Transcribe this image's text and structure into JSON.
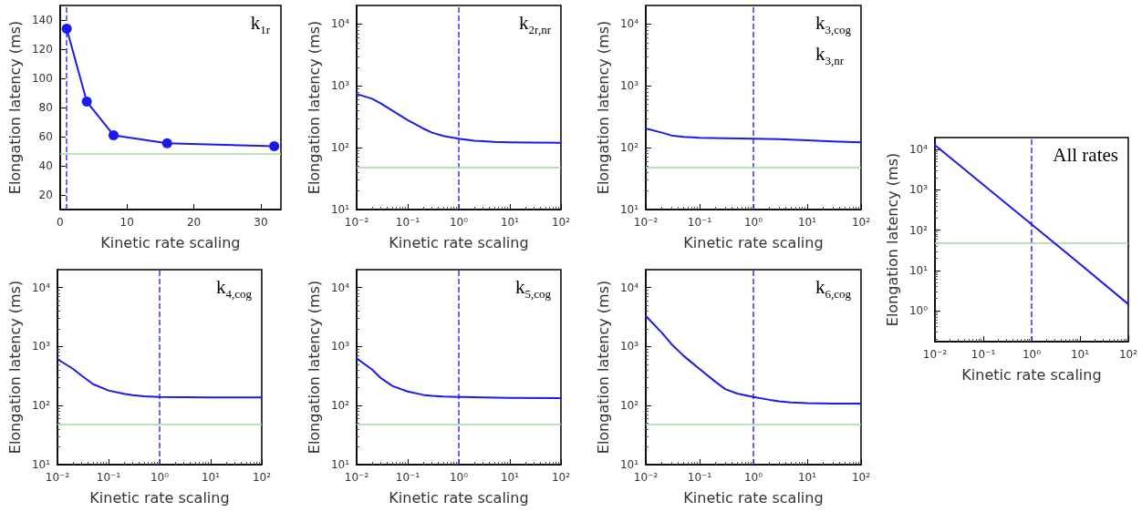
{
  "chart_data": [
    {
      "type": "line",
      "xlabel": "Kinetic rate scaling",
      "ylabel": "Elongation latency (ms)",
      "annotations": [
        "k$_{1r}$"
      ],
      "xlim": [
        0,
        33
      ],
      "ylim": [
        10,
        150
      ],
      "xticks": [
        0,
        10,
        20,
        30
      ],
      "yticks": [
        20,
        40,
        60,
        80,
        100,
        120,
        140
      ],
      "marker": "circle",
      "series": [
        {
          "color": "#1a1aee",
          "x": [
            1,
            4,
            8,
            16,
            32
          ],
          "values": [
            134,
            84,
            61,
            55.5,
            53.5
          ]
        }
      ],
      "ref_lines": [
        {
          "axis": "x",
          "value": 1,
          "color": "#3333ee",
          "line_style": "dashed"
        },
        {
          "axis": "y",
          "value": 48,
          "color": "#a3d9a3",
          "line_style": "solid"
        }
      ]
    },
    {
      "type": "line",
      "xlabel": "Kinetic rate scaling",
      "ylabel": "Elongation latency (ms)",
      "annotations": [
        "k$_{2r,nr}$"
      ],
      "log": "xy",
      "xlim": [
        0.01,
        100
      ],
      "ylim": [
        10,
        20000
      ],
      "xticks": [
        {
          "value": 0.01,
          "label": "10⁻²"
        },
        {
          "value": 0.1,
          "label": "10⁻¹"
        },
        {
          "value": 1,
          "label": "10⁰"
        },
        {
          "value": 10,
          "label": "10¹"
        },
        {
          "value": 100,
          "label": "10²"
        }
      ],
      "yticks": [
        {
          "value": 10,
          "label": "10¹"
        },
        {
          "value": 100,
          "label": "10²"
        },
        {
          "value": 1000,
          "label": "10³"
        },
        {
          "value": 10000,
          "label": "10⁴"
        }
      ],
      "series": [
        {
          "color": "#1a1aee",
          "x": [
            0.01,
            0.02,
            0.03,
            0.05,
            0.1,
            0.2,
            0.3,
            0.5,
            1,
            2,
            3,
            5,
            10,
            30,
            100
          ],
          "values": [
            740,
            620,
            520,
            400,
            280,
            205,
            175,
            155,
            140,
            130,
            127,
            124,
            122,
            121,
            120
          ]
        }
      ],
      "ref_lines": [
        {
          "axis": "x",
          "value": 1,
          "color": "#3333ee",
          "line_style": "dashed"
        },
        {
          "axis": "y",
          "value": 48,
          "color": "#a3d9a3",
          "line_style": "solid"
        }
      ]
    },
    {
      "type": "line",
      "xlabel": "Kinetic rate scaling",
      "ylabel": "Elongation latency (ms)",
      "annotations": [
        "k$_{3,cog}$",
        "k$_{3,nr}$"
      ],
      "log": "xy",
      "xlim": [
        0.01,
        100
      ],
      "ylim": [
        10,
        20000
      ],
      "xticks": [
        {
          "value": 0.01,
          "label": "10⁻²"
        },
        {
          "value": 0.1,
          "label": "10⁻¹"
        },
        {
          "value": 1,
          "label": "10⁰"
        },
        {
          "value": 10,
          "label": "10¹"
        },
        {
          "value": 100,
          "label": "10²"
        }
      ],
      "yticks": [
        {
          "value": 10,
          "label": "10¹"
        },
        {
          "value": 100,
          "label": "10²"
        },
        {
          "value": 1000,
          "label": "10³"
        },
        {
          "value": 10000,
          "label": "10⁴"
        }
      ],
      "series": [
        {
          "color": "#1a1aee",
          "x": [
            0.01,
            0.02,
            0.03,
            0.05,
            0.1,
            0.3,
            1,
            3,
            10,
            30,
            100
          ],
          "values": [
            205,
            175,
            158,
            150,
            145,
            142,
            140,
            137,
            132,
            126,
            122
          ]
        }
      ],
      "ref_lines": [
        {
          "axis": "x",
          "value": 1,
          "color": "#3333ee",
          "line_style": "dashed"
        },
        {
          "axis": "y",
          "value": 48,
          "color": "#a3d9a3",
          "line_style": "solid"
        }
      ]
    },
    {
      "type": "line",
      "xlabel": "Kinetic rate scaling",
      "ylabel": "Elongation latency (ms)",
      "annotations": [
        "k$_{4,cog}$"
      ],
      "log": "xy",
      "xlim": [
        0.01,
        100
      ],
      "ylim": [
        10,
        20000
      ],
      "xticks": [
        {
          "value": 0.01,
          "label": "10⁻²"
        },
        {
          "value": 0.1,
          "label": "10⁻¹"
        },
        {
          "value": 1,
          "label": "10⁰"
        },
        {
          "value": 10,
          "label": "10¹"
        },
        {
          "value": 100,
          "label": "10²"
        }
      ],
      "yticks": [
        {
          "value": 10,
          "label": "10¹"
        },
        {
          "value": 100,
          "label": "10²"
        },
        {
          "value": 1000,
          "label": "10³"
        },
        {
          "value": 10000,
          "label": "10⁴"
        }
      ],
      "series": [
        {
          "color": "#1a1aee",
          "x": [
            0.01,
            0.02,
            0.03,
            0.05,
            0.1,
            0.2,
            0.3,
            0.5,
            1,
            3,
            10,
            100
          ],
          "values": [
            610,
            420,
            320,
            230,
            180,
            158,
            150,
            144,
            140,
            138,
            137,
            137
          ]
        }
      ],
      "ref_lines": [
        {
          "axis": "x",
          "value": 1,
          "color": "#3333ee",
          "line_style": "dashed"
        },
        {
          "axis": "y",
          "value": 48,
          "color": "#a3d9a3",
          "line_style": "solid"
        }
      ]
    },
    {
      "type": "line",
      "xlabel": "Kinetic rate scaling",
      "ylabel": "Elongation latency (ms)",
      "annotations": [
        "k$_{5,cog}$"
      ],
      "log": "xy",
      "xlim": [
        0.01,
        100
      ],
      "ylim": [
        10,
        20000
      ],
      "xticks": [
        {
          "value": 0.01,
          "label": "10⁻²"
        },
        {
          "value": 0.1,
          "label": "10⁻¹"
        },
        {
          "value": 1,
          "label": "10⁰"
        },
        {
          "value": 10,
          "label": "10¹"
        },
        {
          "value": 100,
          "label": "10²"
        }
      ],
      "yticks": [
        {
          "value": 10,
          "label": "10¹"
        },
        {
          "value": 100,
          "label": "10²"
        },
        {
          "value": 1000,
          "label": "10³"
        },
        {
          "value": 10000,
          "label": "10⁴"
        }
      ],
      "series": [
        {
          "color": "#1a1aee",
          "x": [
            0.01,
            0.02,
            0.03,
            0.05,
            0.1,
            0.2,
            0.3,
            0.5,
            1,
            3,
            10,
            100
          ],
          "values": [
            630,
            410,
            290,
            215,
            173,
            152,
            146,
            142,
            140,
            137,
            135,
            134
          ]
        }
      ],
      "ref_lines": [
        {
          "axis": "x",
          "value": 1,
          "color": "#3333ee",
          "line_style": "dashed"
        },
        {
          "axis": "y",
          "value": 48,
          "color": "#a3d9a3",
          "line_style": "solid"
        }
      ]
    },
    {
      "type": "line",
      "xlabel": "Kinetic rate scaling",
      "ylabel": "Elongation latency (ms)",
      "annotations": [
        "k$_{6,cog}$"
      ],
      "log": "xy",
      "xlim": [
        0.01,
        100
      ],
      "ylim": [
        10,
        20000
      ],
      "xticks": [
        {
          "value": 0.01,
          "label": "10⁻²"
        },
        {
          "value": 0.1,
          "label": "10⁻¹"
        },
        {
          "value": 1,
          "label": "10⁰"
        },
        {
          "value": 10,
          "label": "10¹"
        },
        {
          "value": 100,
          "label": "10²"
        }
      ],
      "yticks": [
        {
          "value": 10,
          "label": "10¹"
        },
        {
          "value": 100,
          "label": "10²"
        },
        {
          "value": 1000,
          "label": "10³"
        },
        {
          "value": 10000,
          "label": "10⁴"
        }
      ],
      "series": [
        {
          "color": "#1a1aee",
          "x": [
            0.01,
            0.02,
            0.03,
            0.05,
            0.1,
            0.2,
            0.3,
            0.5,
            1,
            2,
            3,
            5,
            10,
            30,
            100
          ],
          "values": [
            3300,
            1700,
            1100,
            700,
            415,
            250,
            190,
            160,
            140,
            125,
            118,
            113,
            110,
            108,
            108
          ]
        }
      ],
      "ref_lines": [
        {
          "axis": "x",
          "value": 1,
          "color": "#3333ee",
          "line_style": "dashed"
        },
        {
          "axis": "y",
          "value": 48,
          "color": "#a3d9a3",
          "line_style": "solid"
        }
      ]
    },
    {
      "type": "line",
      "xlabel": "Kinetic rate scaling",
      "ylabel": "Elongation latency (ms)",
      "annotations": [
        "All rates"
      ],
      "log": "xy",
      "xlim": [
        0.01,
        100
      ],
      "ylim": [
        0.17,
        20000
      ],
      "xticks": [
        {
          "value": 0.01,
          "label": "10⁻²"
        },
        {
          "value": 0.1,
          "label": "10⁻¹"
        },
        {
          "value": 1,
          "label": "10⁰"
        },
        {
          "value": 10,
          "label": "10¹"
        },
        {
          "value": 100,
          "label": "10²"
        }
      ],
      "yticks": [
        {
          "value": 1,
          "label": "10⁰"
        },
        {
          "value": 10,
          "label": "10¹"
        },
        {
          "value": 100,
          "label": "10²"
        },
        {
          "value": 1000,
          "label": "10³"
        },
        {
          "value": 10000,
          "label": "10⁴"
        }
      ],
      "series": [
        {
          "color": "#1a1aee",
          "x": [
            0.01,
            0.1,
            1,
            10,
            100
          ],
          "values": [
            13000,
            1350,
            140,
            14.5,
            1.45
          ]
        }
      ],
      "ref_lines": [
        {
          "axis": "x",
          "value": 1,
          "color": "#3333ee",
          "line_style": "dashed"
        },
        {
          "axis": "y",
          "value": 48,
          "color": "#a3d9a3",
          "line_style": "solid"
        }
      ]
    }
  ]
}
